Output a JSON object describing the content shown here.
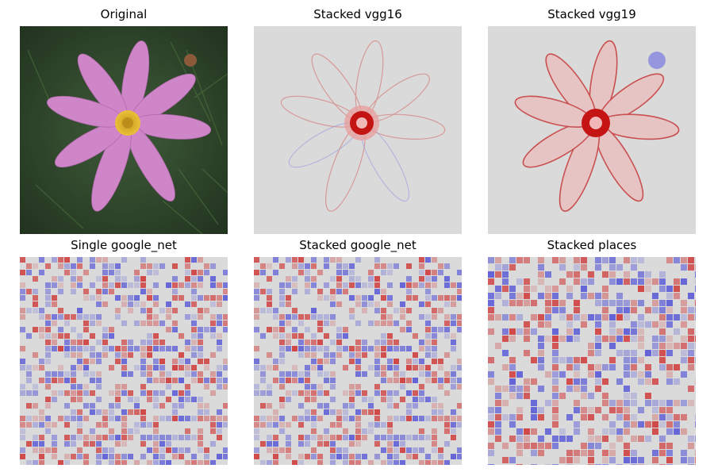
{
  "panels": [
    {
      "title": "Original",
      "kind": "photo"
    },
    {
      "title": "Stacked vgg16",
      "kind": "saliency-outline"
    },
    {
      "title": "Stacked vgg19",
      "kind": "saliency-outline"
    },
    {
      "title": "Single google_net",
      "kind": "saliency-grid"
    },
    {
      "title": "Stacked google_net",
      "kind": "saliency-grid"
    },
    {
      "title": "Stacked places",
      "kind": "saliency-grid"
    }
  ],
  "colors": {
    "background": "#ffffff",
    "saliency_neutral": "#dadada",
    "saliency_positive": "#cc0000",
    "saliency_negative": "#2a2ad6",
    "petal": "#c97fc4",
    "flower_center": "#e3b62a",
    "foliage": "#2f4a2e"
  }
}
